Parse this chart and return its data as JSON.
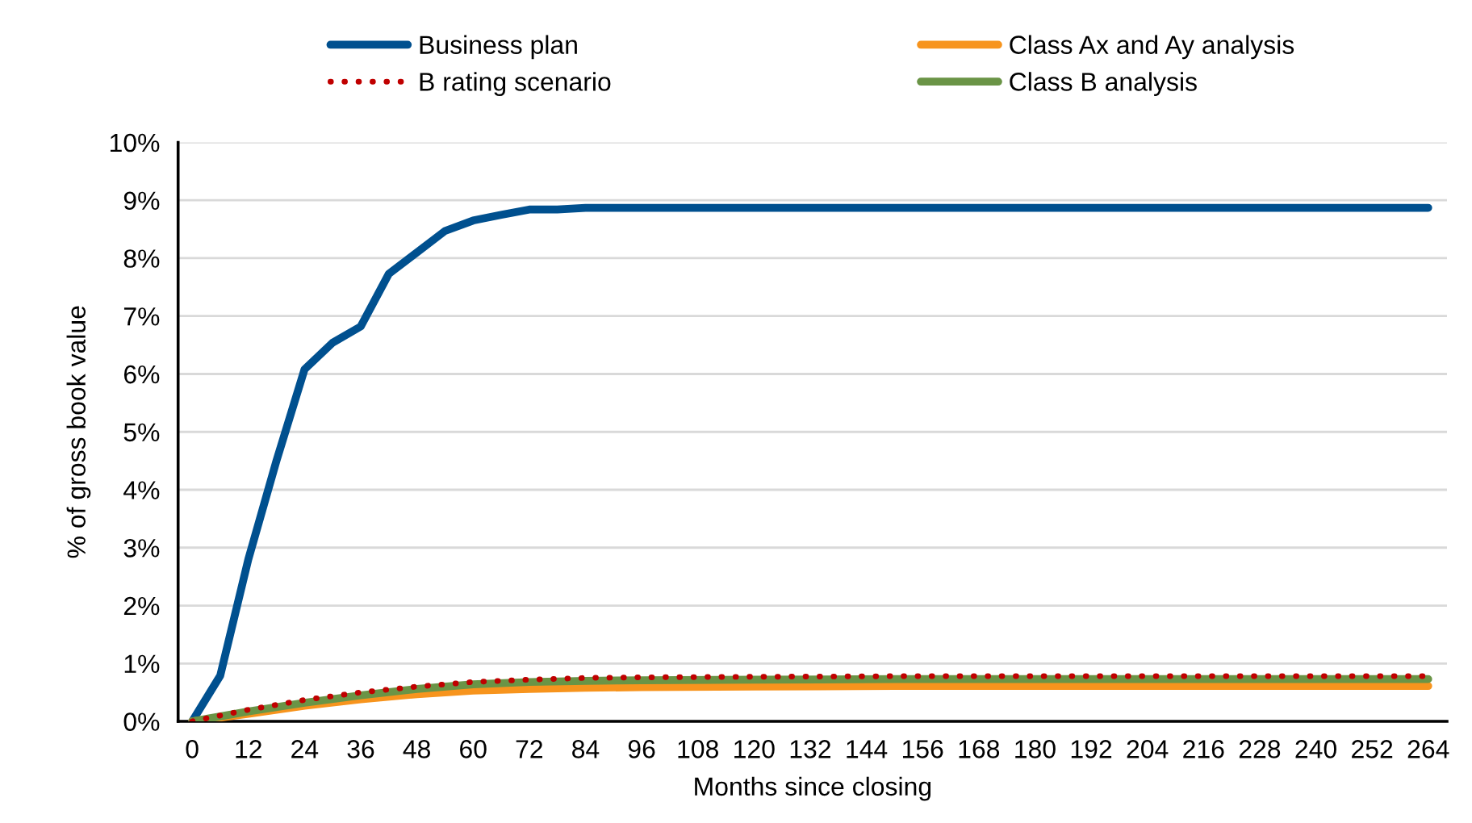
{
  "chart_data": {
    "type": "line",
    "xlabel": "Months since closing",
    "ylabel": "% of gross book value",
    "xlim": [
      -3,
      268
    ],
    "xticks": [
      0,
      12,
      24,
      36,
      48,
      60,
      72,
      84,
      96,
      108,
      120,
      132,
      144,
      156,
      168,
      180,
      192,
      204,
      216,
      228,
      240,
      252,
      264
    ],
    "ylim": [
      0,
      10
    ],
    "yticks": [
      {
        "value": 0,
        "label": "0%"
      },
      {
        "value": 1,
        "label": "1%"
      },
      {
        "value": 2,
        "label": "2%"
      },
      {
        "value": 3,
        "label": "3%"
      },
      {
        "value": 4,
        "label": "4%"
      },
      {
        "value": 5,
        "label": "5%"
      },
      {
        "value": 6,
        "label": "6%"
      },
      {
        "value": 7,
        "label": "7%"
      },
      {
        "value": 8,
        "label": "8%"
      },
      {
        "value": 9,
        "label": "9%"
      },
      {
        "value": 10,
        "label": "10%"
      }
    ],
    "grid": "y",
    "legend": "top",
    "marker": "none",
    "series": [
      {
        "name": "Business plan",
        "color": "#00508f",
        "x": [
          0,
          6,
          12,
          18,
          24,
          30,
          36,
          42,
          48,
          54,
          60,
          66,
          72,
          78,
          84,
          264
        ],
        "values": [
          0,
          0.79,
          2.8,
          4.5,
          6.08,
          6.54,
          6.82,
          7.73,
          8.1,
          8.47,
          8.65,
          8.75,
          8.84,
          8.84,
          8.87,
          8.87
        ]
      },
      {
        "name": "Class Ax and Ay analysis",
        "color": "#f7941d",
        "x": [
          0,
          12,
          24,
          36,
          48,
          60,
          72,
          84,
          96,
          120,
          150,
          264
        ],
        "values": [
          0,
          0.13,
          0.27,
          0.38,
          0.47,
          0.53,
          0.56,
          0.58,
          0.59,
          0.6,
          0.61,
          0.61
        ]
      },
      {
        "name": "B rating scenario",
        "color": "#c00000",
        "line_style": "dotted",
        "x": [
          0,
          12,
          24,
          36,
          48,
          60,
          72,
          84,
          96,
          120,
          150,
          264
        ],
        "values": [
          0,
          0.2,
          0.37,
          0.5,
          0.6,
          0.68,
          0.72,
          0.75,
          0.76,
          0.77,
          0.78,
          0.78
        ]
      },
      {
        "name": "Class B analysis",
        "color": "#6a9446",
        "x": [
          0,
          12,
          24,
          36,
          48,
          60,
          72,
          84,
          96,
          120,
          150,
          264
        ],
        "values": [
          0,
          0.17,
          0.32,
          0.45,
          0.56,
          0.64,
          0.68,
          0.7,
          0.71,
          0.72,
          0.73,
          0.73
        ]
      }
    ]
  }
}
